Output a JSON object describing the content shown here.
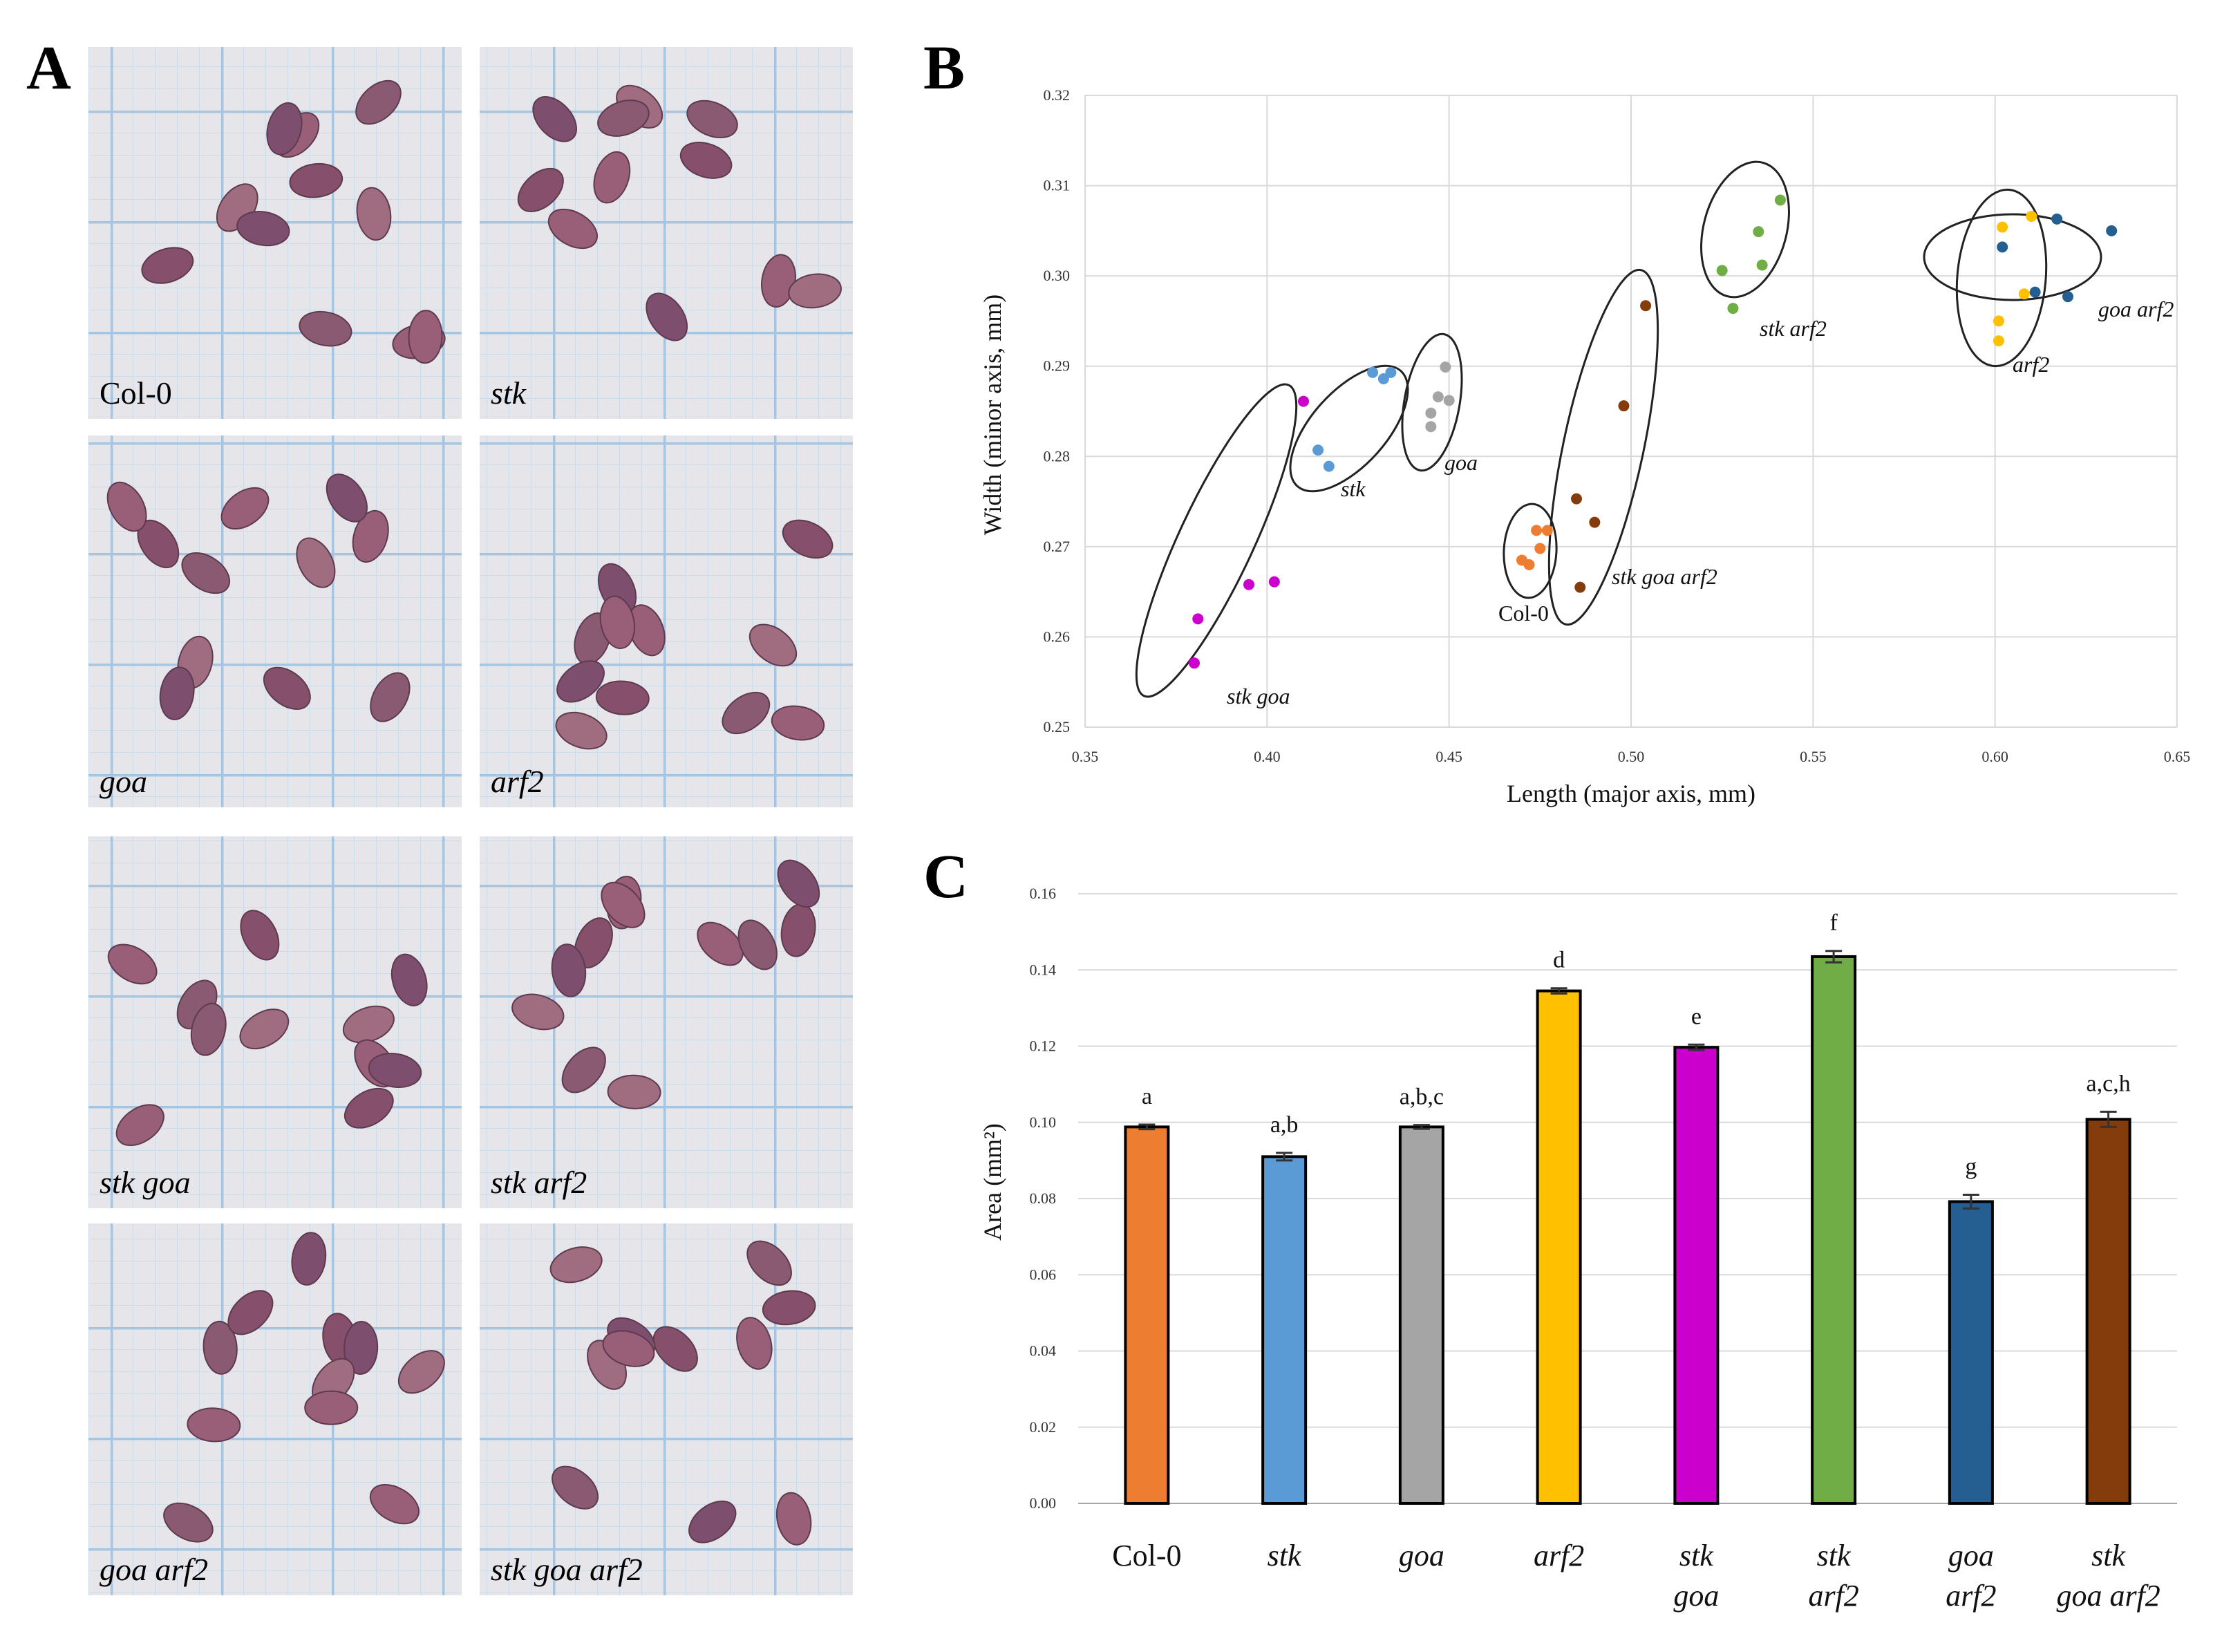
{
  "panels": {
    "a": "A",
    "b": "B",
    "c": "C"
  },
  "photos": [
    {
      "label": "Col-0",
      "italic": false
    },
    {
      "label": "stk",
      "italic": true
    },
    {
      "label": "goa",
      "italic": true
    },
    {
      "label": "arf2",
      "italic": true
    },
    {
      "label": "stk goa",
      "italic": true
    },
    {
      "label": "stk arf2",
      "italic": true
    },
    {
      "label": "goa arf2",
      "italic": true
    },
    {
      "label": "stk goa arf2",
      "italic": true
    }
  ],
  "chart_data": [
    {
      "type": "scatter",
      "panel": "B",
      "xlabel": "Length (major axis, mm)",
      "ylabel": "Width (minor axis, mm)",
      "xlim": [
        0.35,
        0.65
      ],
      "ylim": [
        0.25,
        0.32
      ],
      "xticks": [
        "0.35",
        "0.40",
        "0.45",
        "0.50",
        "0.55",
        "0.60",
        "0.65"
      ],
      "yticks": [
        "0.25",
        "0.26",
        "0.27",
        "0.28",
        "0.29",
        "0.30",
        "0.31",
        "0.32"
      ],
      "series": [
        {
          "name": "Col-0",
          "color": "#ED7D31",
          "italic": false,
          "points": [
            [
              0.47,
              0.2685
            ],
            [
              0.472,
              0.268
            ],
            [
              0.474,
              0.2718
            ],
            [
              0.475,
              0.2698
            ],
            [
              0.477,
              0.2718
            ]
          ]
        },
        {
          "name": "stk",
          "color": "#5B9BD5",
          "italic": true,
          "points": [
            [
              0.414,
              0.2807
            ],
            [
              0.417,
              0.2789
            ],
            [
              0.429,
              0.2893
            ],
            [
              0.432,
              0.2886
            ],
            [
              0.434,
              0.2893
            ]
          ]
        },
        {
          "name": "goa",
          "color": "#A5A5A5",
          "italic": true,
          "points": [
            [
              0.445,
              0.2848
            ],
            [
              0.445,
              0.2833
            ],
            [
              0.447,
              0.2866
            ],
            [
              0.449,
              0.2899
            ],
            [
              0.45,
              0.2862
            ]
          ]
        },
        {
          "name": "arf2",
          "color": "#FFC000",
          "italic": true,
          "points": [
            [
              0.601,
              0.295
            ],
            [
              0.601,
              0.2928
            ],
            [
              0.602,
              0.3054
            ],
            [
              0.608,
              0.298
            ],
            [
              0.61,
              0.3066
            ]
          ]
        },
        {
          "name": "stk goa",
          "color": "#CC00CC",
          "italic": true,
          "points": [
            [
              0.38,
              0.2571
            ],
            [
              0.381,
              0.262
            ],
            [
              0.395,
              0.2658
            ],
            [
              0.402,
              0.2661
            ],
            [
              0.41,
              0.2861
            ]
          ]
        },
        {
          "name": "stk arf2",
          "color": "#70AD47",
          "italic": true,
          "points": [
            [
              0.525,
              0.3006
            ],
            [
              0.528,
              0.2964
            ],
            [
              0.535,
              0.3049
            ],
            [
              0.536,
              0.3012
            ],
            [
              0.541,
              0.3084
            ]
          ]
        },
        {
          "name": "goa arf2",
          "color": "#255E91",
          "italic": true,
          "points": [
            [
              0.602,
              0.3032
            ],
            [
              0.611,
              0.2982
            ],
            [
              0.617,
              0.3063
            ],
            [
              0.62,
              0.2977
            ],
            [
              0.632,
              0.305
            ]
          ]
        },
        {
          "name": "stk goa arf2",
          "color": "#843C0C",
          "italic": true,
          "points": [
            [
              0.485,
              0.2753
            ],
            [
              0.486,
              0.2655
            ],
            [
              0.49,
              0.2727
            ],
            [
              0.498,
              0.2856
            ],
            [
              0.504,
              0.2967
            ]
          ]
        }
      ],
      "ellipse_labels": [
        "stk goa",
        "stk",
        "goa",
        "Col-0",
        "stk goa arf2",
        "stk arf2",
        "arf2",
        "goa arf2"
      ]
    },
    {
      "type": "bar",
      "panel": "C",
      "ylabel": "Area (mm²)",
      "ylim": [
        0,
        0.16
      ],
      "yticks": [
        "0.00",
        "0.02",
        "0.04",
        "0.06",
        "0.08",
        "0.10",
        "0.12",
        "0.14",
        "0.16"
      ],
      "categories": [
        {
          "lines": [
            "Col-0"
          ],
          "italic": false
        },
        {
          "lines": [
            "stk"
          ],
          "italic": true
        },
        {
          "lines": [
            "goa"
          ],
          "italic": true
        },
        {
          "lines": [
            "arf2"
          ],
          "italic": true
        },
        {
          "lines": [
            "stk",
            "goa"
          ],
          "italic": true
        },
        {
          "lines": [
            "stk",
            "arf2"
          ],
          "italic": true
        },
        {
          "lines": [
            "goa",
            "arf2"
          ],
          "italic": true
        },
        {
          "lines": [
            "stk",
            "goa arf2"
          ],
          "italic": true
        }
      ],
      "values": [
        0.0988,
        0.091,
        0.0988,
        0.1345,
        0.1197,
        0.1435,
        0.0792,
        0.1008
      ],
      "errors": [
        0.0006,
        0.001,
        0.0005,
        0.0007,
        0.0007,
        0.0015,
        0.0018,
        0.002
      ],
      "colors": [
        "#ED7D31",
        "#5B9BD5",
        "#A5A5A5",
        "#FFC000",
        "#CC00CC",
        "#70AD47",
        "#255E91",
        "#843C0C"
      ],
      "significance": [
        "a",
        "a,b",
        "a,b,c",
        "d",
        "e",
        "f",
        "g",
        "a,c,h"
      ]
    }
  ]
}
